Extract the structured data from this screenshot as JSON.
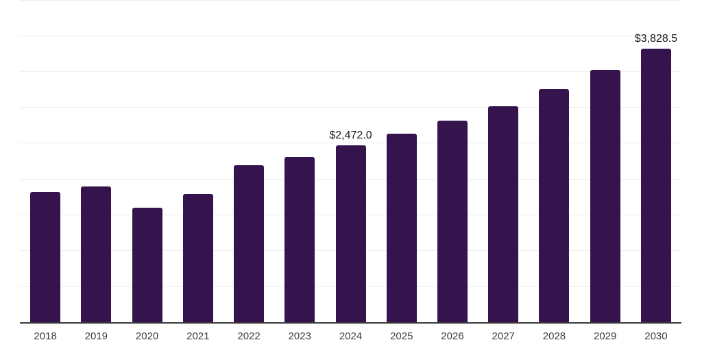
{
  "chart": {
    "background": "#ffffff",
    "bar_color": "#35134D",
    "axis_line_color": "#3a3a3a",
    "gridline_color": "#ededed",
    "tick_label_color": "#3d3d3d",
    "data_label_color": "#1a1a1a"
  },
  "chart_data": {
    "type": "bar",
    "title": "",
    "xlabel": "",
    "ylabel": "",
    "categories": [
      "2018",
      "2019",
      "2020",
      "2021",
      "2022",
      "2023",
      "2024",
      "2025",
      "2026",
      "2027",
      "2028",
      "2029",
      "2030"
    ],
    "values": [
      1820,
      1900,
      1600,
      1795,
      2195,
      2315,
      2472.0,
      2635,
      2820,
      3025,
      3260,
      3535,
      3828.5
    ],
    "value_labels": [
      "",
      "",
      "",
      "",
      "",
      "",
      "$2,472.0",
      "",
      "",
      "",
      "",
      "",
      "$3,828.5"
    ],
    "ylim": [
      0,
      4500
    ],
    "grid": {
      "axis": "y",
      "interval": 500,
      "visible": true
    },
    "legend": "none",
    "x_axis_line": true,
    "y_axis_labels_visible": false
  }
}
